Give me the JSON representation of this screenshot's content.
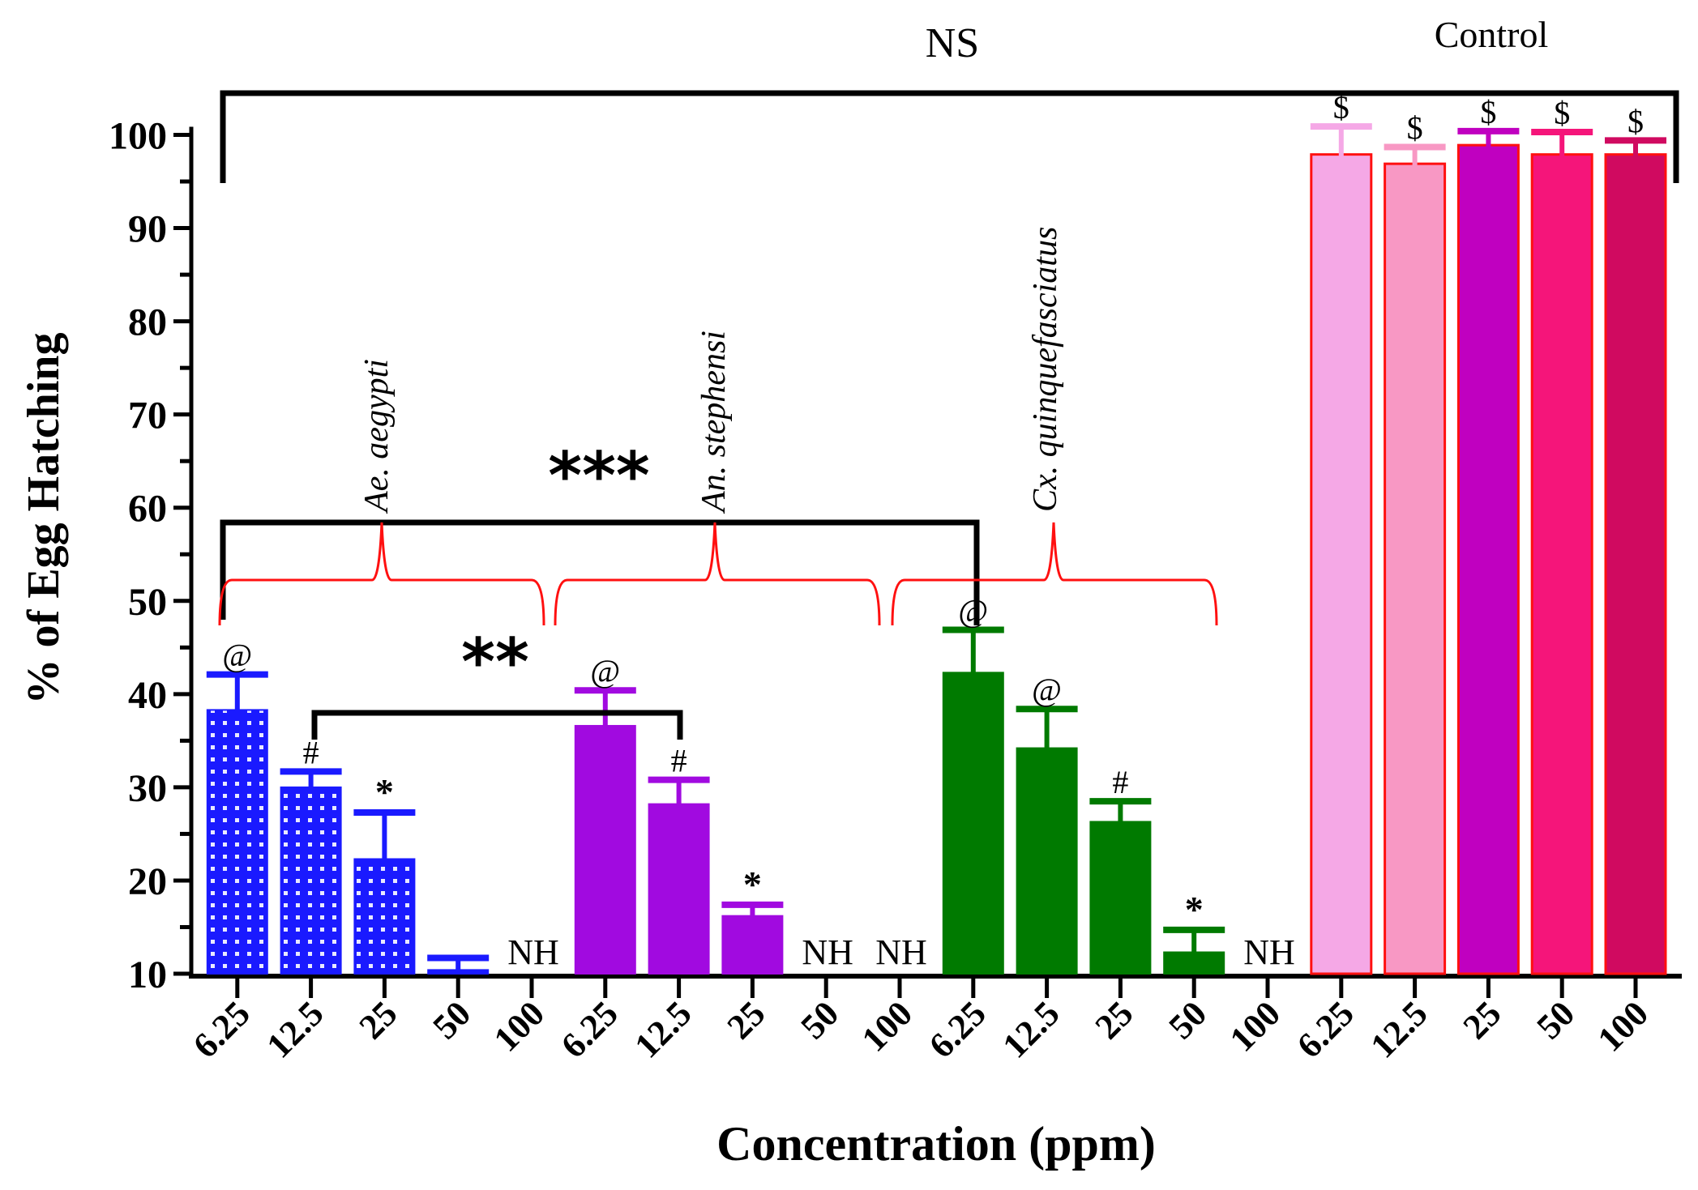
{
  "chart_data": {
    "type": "bar",
    "title": "",
    "xlabel": "Concentration (ppm)",
    "ylabel": "% of Egg Hatching",
    "ylim": [
      10,
      100
    ],
    "yticks": [
      "10",
      "20",
      "30",
      "40",
      "50",
      "60",
      "70",
      "80",
      "90",
      "100"
    ],
    "categories": [
      "6.25",
      "12.5",
      "25",
      "50",
      "100"
    ],
    "groups": [
      {
        "name": "Ae. aegypti",
        "color": "#1a1aff",
        "pattern": true,
        "values": [
          38.3,
          30.0,
          22.3,
          10.4,
          null
        ],
        "errors": [
          3.8,
          1.7,
          5.0,
          1.3,
          null
        ],
        "marks": [
          "@",
          "#",
          "*",
          "",
          "NH"
        ]
      },
      {
        "name": "An. stephensi",
        "color": "#a10ae0",
        "pattern": false,
        "values": [
          36.6,
          28.2,
          16.2,
          null,
          null
        ],
        "errors": [
          3.8,
          2.6,
          1.2,
          null,
          null
        ],
        "marks": [
          "@",
          "#",
          "*",
          "NH",
          "NH"
        ]
      },
      {
        "name": "Cx. quinquefasciatus",
        "color": "#007a00",
        "pattern": false,
        "values": [
          42.3,
          34.2,
          26.3,
          12.3,
          null
        ],
        "errors": [
          4.6,
          4.2,
          2.2,
          2.4,
          null
        ],
        "marks": [
          "@",
          "@",
          "#",
          "*",
          "NH"
        ]
      },
      {
        "name": "Control",
        "color": "#f5a8e6",
        "pattern": false,
        "bar_colors": [
          "#f5a8e6",
          "#f898c4",
          "#c000c0",
          "#f5157a",
          "#d00a60"
        ],
        "cap_colors": [
          "#f5a8e6",
          "#f898c4",
          "#c000c0",
          "#f5157a",
          "#d00a60"
        ],
        "values": [
          97.9,
          96.9,
          98.9,
          97.9,
          97.9
        ],
        "errors": [
          3.0,
          1.8,
          1.5,
          2.4,
          1.5
        ],
        "marks": [
          "$",
          "$",
          "$",
          "$",
          "$"
        ]
      }
    ],
    "annotations": {
      "ns_label": "NS",
      "control_label": "Control",
      "three_star": "***",
      "two_star": "**"
    }
  }
}
